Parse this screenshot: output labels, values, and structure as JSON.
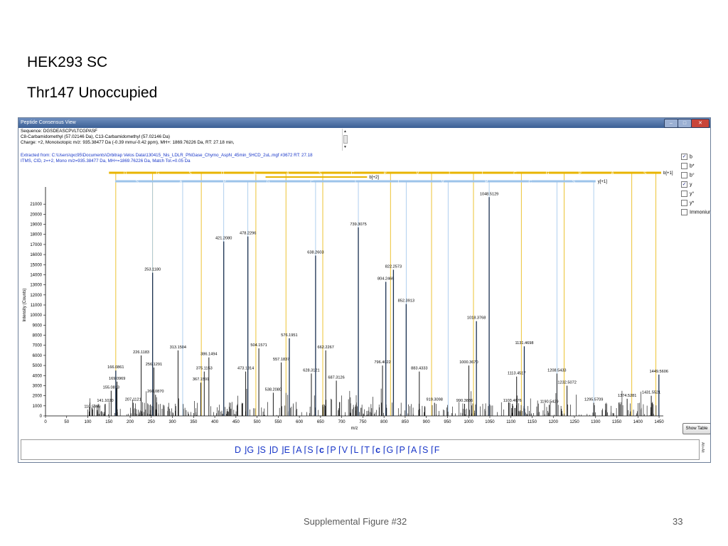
{
  "slide": {
    "title_line1": "HEK293 SC",
    "title_line2": "Thr147 Unoccupied",
    "footer_caption": "Supplemental Figure #32",
    "footer_page": "33"
  },
  "window": {
    "title": "Peptide Consensus View",
    "min_label": "–",
    "max_label": "□",
    "close_label": "✕"
  },
  "sequence_info": {
    "line1": "Sequence: DGSDEASCPVLTCGPASF",
    "line2": "C8-Carbamidomethyl (57.02146 Da), C13-Carbamidomethyl (57.02146 Da)",
    "line3": "Charge: +2,   Monoisotopic m/z: 935.38477 Da (-0.39 mmu/-0.42 ppm),   MH+: 1869.76226 Da,   RT: 27.18 min,"
  },
  "spectrum_info": {
    "line1": "Extracted from: C:\\Users\\qxc95\\Documents\\Orbitrap Velos Data\\130415_Nis_LDLR_PNGase_Chymo_AspN_45min_5HCD_2uL.mgf  #3672   RT: 27.18",
    "line2": "ITMS, CID, z=+2, Mono m/z=935.38477 Da, MH+=1869.76226 Da, Match Tol.=0.05 Da"
  },
  "options": [
    {
      "label": "b",
      "checked": true
    },
    {
      "label": "b*",
      "checked": false
    },
    {
      "label": "b°",
      "checked": false
    },
    {
      "label": "y",
      "checked": true
    },
    {
      "label": "y°",
      "checked": false
    },
    {
      "label": "y*",
      "checked": false
    },
    {
      "label": "Immonium",
      "checked": false
    }
  ],
  "show_table_label": "Show Table",
  "fragment_sequence": [
    "D",
    "G",
    "S",
    "D",
    "E",
    "A",
    "S",
    "c",
    "P",
    "V",
    "L",
    "T",
    "c",
    "G",
    "P",
    "A",
    "S",
    "F"
  ],
  "fragment_vertical_label": "Alt+Alt",
  "colors": {
    "b_ion": "#e8b400",
    "y_ion": "#9cc3ea",
    "matched_peak": "#1a3050",
    "unmatched_peak": "#000000",
    "info_text": "#1836c8"
  },
  "chart_data": {
    "type": "bar",
    "xlabel": "m/z",
    "ylabel": "Intensity (Counts)",
    "xlim": [
      0,
      1460
    ],
    "ylim": [
      0,
      22000
    ],
    "x_ticks": [
      0,
      50,
      100,
      150,
      200,
      250,
      300,
      350,
      400,
      450,
      500,
      550,
      600,
      650,
      700,
      750,
      800,
      850,
      900,
      950,
      1000,
      1050,
      1100,
      1150,
      1200,
      1250,
      1300,
      1350,
      1400,
      1450
    ],
    "y_ticks": [
      0,
      1000,
      2000,
      3000,
      4000,
      5000,
      6000,
      7000,
      8000,
      9000,
      10000,
      11000,
      12000,
      13000,
      14000,
      15000,
      16000,
      17000,
      18000,
      19000,
      20000,
      21000
    ],
    "b_ion_series_label": "b[+1]",
    "b2_ion_series_label": "b[+2]",
    "y_ion_series_label": "y[+1]",
    "labeled_peaks": [
      {
        "mz": 110.5999,
        "intensity": 600,
        "label": "110.5999",
        "kind": "other"
      },
      {
        "mz": 141.102,
        "intensity": 1200,
        "label": "141.1020",
        "kind": "other"
      },
      {
        "mz": 155.0813,
        "intensity": 2500,
        "label": "155.0813",
        "kind": "other"
      },
      {
        "mz": 166.0861,
        "intensity": 4500,
        "label": "166.0861",
        "kind": "matched"
      },
      {
        "mz": 169.0969,
        "intensity": 3400,
        "label": "169.0969",
        "kind": "other"
      },
      {
        "mz": 207.1121,
        "intensity": 1300,
        "label": "207.1121",
        "kind": "other"
      },
      {
        "mz": 226.1183,
        "intensity": 6000,
        "label": "226.1183",
        "kind": "other"
      },
      {
        "mz": 253.118,
        "intensity": 14200,
        "label": "253.1180",
        "kind": "matched"
      },
      {
        "mz": 256.1291,
        "intensity": 4800,
        "label": "256.1291",
        "kind": "other"
      },
      {
        "mz": 260.087,
        "intensity": 2100,
        "label": "260.0870",
        "kind": "other"
      },
      {
        "mz": 313.1504,
        "intensity": 6500,
        "label": "313.1504",
        "kind": "other"
      },
      {
        "mz": 367.1591,
        "intensity": 3300,
        "label": "367.1591",
        "kind": "other"
      },
      {
        "mz": 375.1153,
        "intensity": 4400,
        "label": "375.1153",
        "kind": "other"
      },
      {
        "mz": 386.1494,
        "intensity": 5800,
        "label": "386.1494",
        "kind": "other"
      },
      {
        "mz": 421.208,
        "intensity": 17300,
        "label": "421.2080",
        "kind": "matched"
      },
      {
        "mz": 473.1814,
        "intensity": 4400,
        "label": "473.1814",
        "kind": "other"
      },
      {
        "mz": 478.2296,
        "intensity": 17800,
        "label": "478.2296",
        "kind": "matched"
      },
      {
        "mz": 504.1571,
        "intensity": 6700,
        "label": "504.1571",
        "kind": "other"
      },
      {
        "mz": 538.208,
        "intensity": 2300,
        "label": "538.2080",
        "kind": "other"
      },
      {
        "mz": 557.1837,
        "intensity": 5300,
        "label": "557.1837",
        "kind": "other"
      },
      {
        "mz": 576.1951,
        "intensity": 7700,
        "label": "576.1951",
        "kind": "matched"
      },
      {
        "mz": 628.3121,
        "intensity": 4200,
        "label": "628.3121",
        "kind": "other"
      },
      {
        "mz": 638.2603,
        "intensity": 15900,
        "label": "638.2603",
        "kind": "matched"
      },
      {
        "mz": 662.2267,
        "intensity": 6500,
        "label": "662.2267",
        "kind": "other"
      },
      {
        "mz": 687.3126,
        "intensity": 3500,
        "label": "687.3126",
        "kind": "other"
      },
      {
        "mz": 739.3075,
        "intensity": 18700,
        "label": "739.3075",
        "kind": "matched"
      },
      {
        "mz": 796.4022,
        "intensity": 5000,
        "label": "796.4022",
        "kind": "other"
      },
      {
        "mz": 804.2466,
        "intensity": 13300,
        "label": "804.2466",
        "kind": "matched"
      },
      {
        "mz": 822.2573,
        "intensity": 14500,
        "label": "822.2573",
        "kind": "matched"
      },
      {
        "mz": 852.3913,
        "intensity": 11100,
        "label": "852.3913",
        "kind": "matched"
      },
      {
        "mz": 883.4333,
        "intensity": 4400,
        "label": "883.4333",
        "kind": "other"
      },
      {
        "mz": 919.3098,
        "intensity": 1300,
        "label": "919.3098",
        "kind": "other"
      },
      {
        "mz": 990.3836,
        "intensity": 1200,
        "label": "990.3836",
        "kind": "other"
      },
      {
        "mz": 1000.367,
        "intensity": 5000,
        "label": "1000.3670",
        "kind": "other"
      },
      {
        "mz": 1018.3768,
        "intensity": 9400,
        "label": "1018.3768",
        "kind": "matched"
      },
      {
        "mz": 1048.5129,
        "intensity": 21700,
        "label": "1048.5129",
        "kind": "matched"
      },
      {
        "mz": 1103.4676,
        "intensity": 1200,
        "label": "1103.4676",
        "kind": "other"
      },
      {
        "mz": 1113.4517,
        "intensity": 3900,
        "label": "1113.4517",
        "kind": "other"
      },
      {
        "mz": 1131.4698,
        "intensity": 6900,
        "label": "1131.4698",
        "kind": "matched"
      },
      {
        "mz": 1190.5429,
        "intensity": 1100,
        "label": "1190.5429",
        "kind": "other"
      },
      {
        "mz": 1208.5433,
        "intensity": 4200,
        "label": "1208.5433",
        "kind": "other"
      },
      {
        "mz": 1232.5072,
        "intensity": 3000,
        "label": "1232.5072",
        "kind": "other"
      },
      {
        "mz": 1295.5709,
        "intensity": 1300,
        "label": "1295.5709",
        "kind": "other"
      },
      {
        "mz": 1374.5281,
        "intensity": 1700,
        "label": "1374.5281",
        "kind": "other"
      },
      {
        "mz": 1431.5521,
        "intensity": 2000,
        "label": "1431.5521",
        "kind": "other"
      },
      {
        "mz": 1449.5606,
        "intensity": 4100,
        "label": "1449.5606",
        "kind": "matched"
      }
    ],
    "b_ion_mz": [
      166.0861,
      253.118,
      368.14,
      497.19,
      568.22,
      655.25,
      815.28,
      912.33,
      1011.4,
      1124.48,
      1225.53,
      1385.56,
      1442.58
    ],
    "y_ion_mz": [
      253.118,
      324.16,
      421.208,
      478.2296,
      638.2603,
      739.3075,
      852.3913,
      951.46,
      1048.5129,
      1208.5433,
      1295.5709
    ],
    "b_bar_letters": [
      "D",
      "G",
      "S",
      "D",
      "E",
      "A",
      "S",
      "C",
      "P",
      "V",
      "L",
      "T",
      "C",
      "G",
      "P",
      "A",
      "S"
    ],
    "y_bar_letters": [
      "S",
      "A",
      "P",
      "G",
      "C",
      "T",
      "L",
      "V",
      "P",
      "C",
      "S"
    ]
  }
}
